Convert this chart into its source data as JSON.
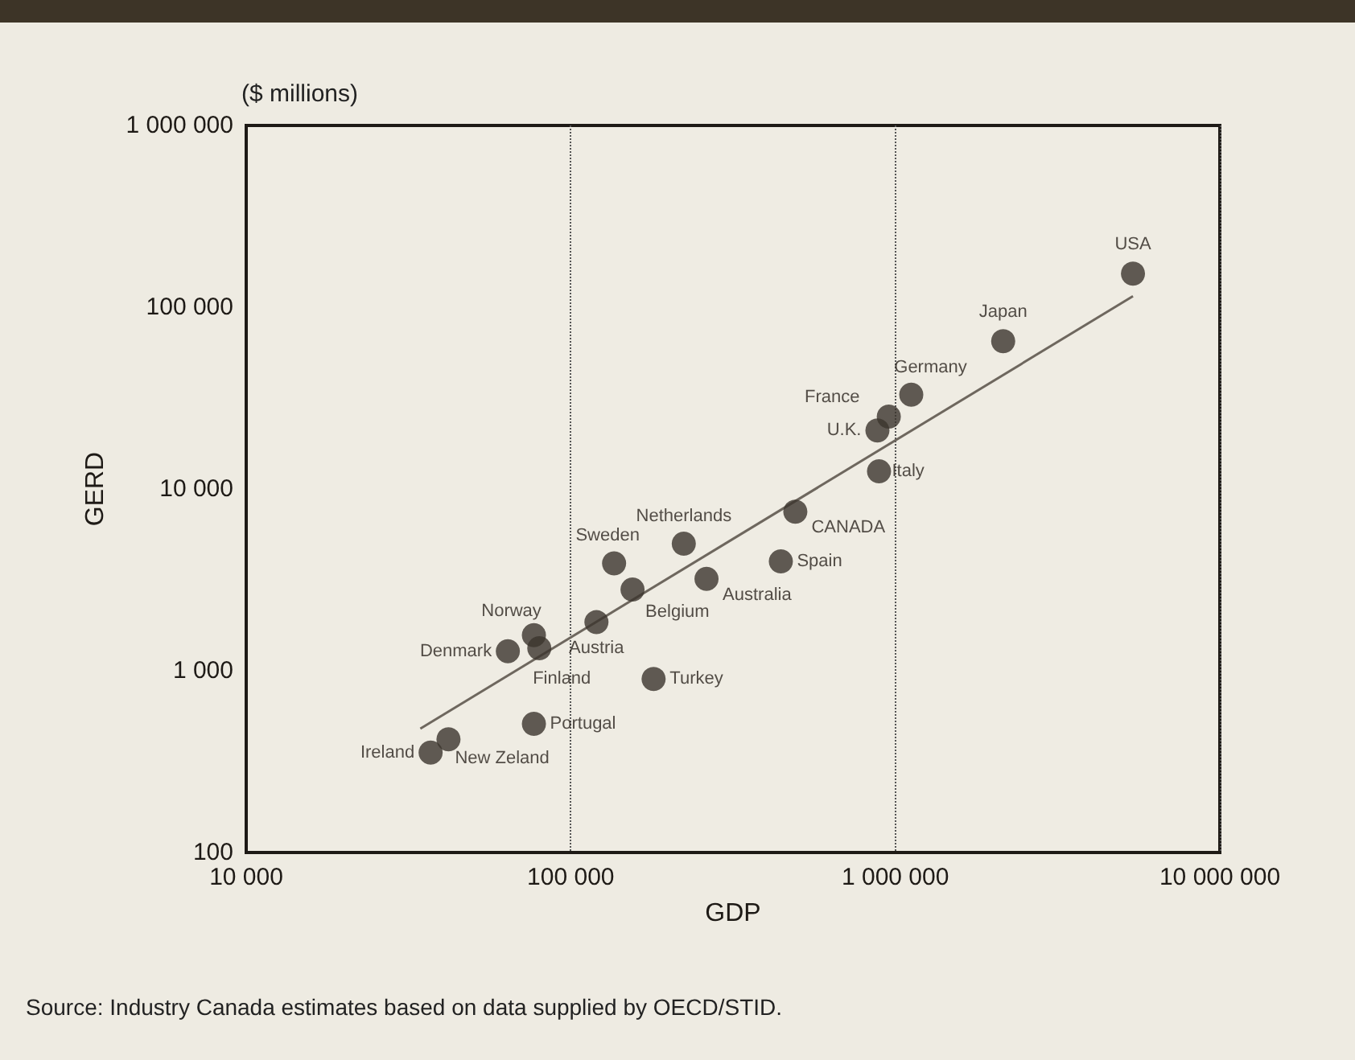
{
  "chart_data": {
    "type": "scatter",
    "xlabel": "GDP",
    "ylabel": "GERD",
    "log": "xy",
    "grid": "x",
    "marker": "circle",
    "xlim": [
      10000,
      10000000
    ],
    "xticks": [
      {
        "value": 10000,
        "label": "10 000"
      },
      {
        "value": 100000,
        "label": "100 000"
      },
      {
        "value": 1000000,
        "label": "1 000 000"
      },
      {
        "value": 10000000,
        "label": "10 000 000"
      }
    ],
    "ylim": [
      100,
      1000000
    ],
    "yticks": [
      {
        "value": 100,
        "label": "100"
      },
      {
        "value": 1000,
        "label": "1 000"
      },
      {
        "value": 10000,
        "label": "10 000"
      },
      {
        "value": 100000,
        "label": "100 000"
      },
      {
        "value": 1000000,
        "label": "1 000 000"
      }
    ],
    "series": [
      {
        "type": "scatter",
        "color": "#3b342d",
        "x": [
          5400000,
          2150000,
          1120000,
          955000,
          881000,
          891000,
          492000,
          444000,
          223000,
          262000,
          136000,
          155000,
          120000,
          180000,
          77000,
          80000,
          64000,
          77000,
          42000,
          37000
        ],
        "values": [
          153000,
          65000,
          33000,
          25000,
          21000,
          12500,
          7500,
          4000,
          5000,
          3200,
          3900,
          2800,
          1850,
          900,
          1570,
          1330,
          1280,
          510,
          420,
          355
        ]
      },
      {
        "type": "line",
        "color": "#6e675e",
        "marker": "none",
        "x": [
          34400,
          5400000
        ],
        "values": [
          480,
          115000
        ]
      }
    ],
    "annotations": [
      {
        "text": "USA",
        "x": 5400000,
        "y": 153000
      },
      {
        "text": "Japan",
        "x": 2150000,
        "y": 65000
      },
      {
        "text": "Germany",
        "x": 1120000,
        "y": 33000
      },
      {
        "text": "France",
        "x": 955000,
        "y": 25000
      },
      {
        "text": "U.K.",
        "x": 881000,
        "y": 21000
      },
      {
        "text": "Italy",
        "x": 891000,
        "y": 12500
      },
      {
        "text": "CANADA",
        "x": 492000,
        "y": 7500
      },
      {
        "text": "Spain",
        "x": 444000,
        "y": 4000
      },
      {
        "text": "Netherlands",
        "x": 223000,
        "y": 5000
      },
      {
        "text": "Australia",
        "x": 262000,
        "y": 3200
      },
      {
        "text": "Sweden",
        "x": 136000,
        "y": 3900
      },
      {
        "text": "Belgium",
        "x": 155000,
        "y": 2800
      },
      {
        "text": "Austria",
        "x": 120000,
        "y": 1850
      },
      {
        "text": "Turkey",
        "x": 180000,
        "y": 900
      },
      {
        "text": "Norway",
        "x": 77000,
        "y": 1570
      },
      {
        "text": "Finland",
        "x": 80000,
        "y": 1330
      },
      {
        "text": "Denmark",
        "x": 64000,
        "y": 1280
      },
      {
        "text": "Portugal",
        "x": 77000,
        "y": 510
      },
      {
        "text": "New Zeland",
        "x": 42000,
        "y": 420
      },
      {
        "text": "Ireland",
        "x": 37000,
        "y": 355
      },
      "($ millions)",
      "Source: Industry Canada estimates based on data supplied by OECD/STID."
    ]
  }
}
